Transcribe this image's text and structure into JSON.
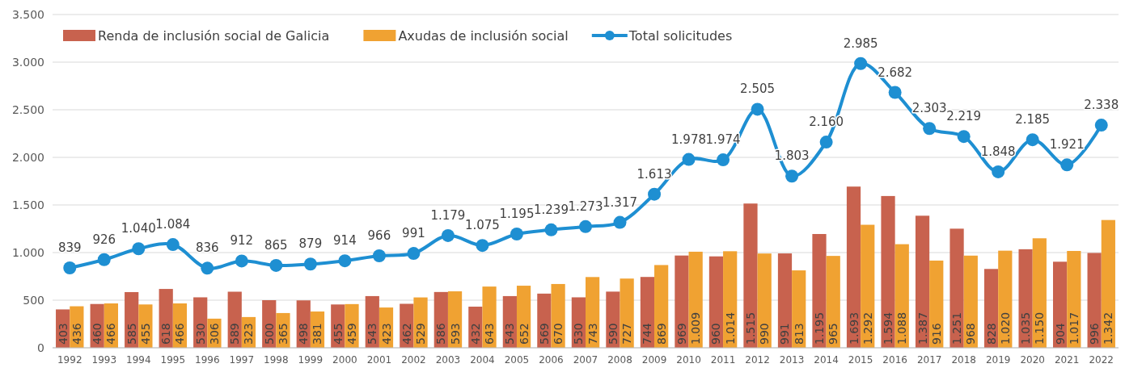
{
  "chart_data": {
    "type": "bar",
    "categories": [
      "1992",
      "1993",
      "1994",
      "1995",
      "1996",
      "1997",
      "1998",
      "1999",
      "2000",
      "2001",
      "2002",
      "2003",
      "2004",
      "2005",
      "2006",
      "2007",
      "2008",
      "2009",
      "2010",
      "2011",
      "2012",
      "2013",
      "2014",
      "2015",
      "2016",
      "2017",
      "2018",
      "2019",
      "2020",
      "2021",
      "2022"
    ],
    "series": [
      {
        "name": "Renda de inclusión social de Galicia",
        "color": "#c8624e",
        "values": [
          403,
          460,
          585,
          618,
          530,
          589,
          500,
          498,
          455,
          543,
          462,
          586,
          432,
          543,
          569,
          530,
          590,
          744,
          969,
          960,
          1515,
          991,
          1195,
          1693,
          1594,
          1387,
          1251,
          828,
          1035,
          904,
          996
        ],
        "value_labels": [
          "403",
          "460",
          "585",
          "618",
          "530",
          "589",
          "500",
          "498",
          "455",
          "543",
          "462",
          "586",
          "432",
          "543",
          "569",
          "530",
          "590",
          "744",
          "969",
          "960",
          "1.515",
          "991",
          "1.195",
          "1.693",
          "1.594",
          "1.387",
          "1.251",
          "828",
          "1.035",
          "904",
          "996"
        ]
      },
      {
        "name": "Axudas de inclusión social",
        "color": "#f0a232",
        "values": [
          436,
          466,
          455,
          466,
          306,
          323,
          365,
          381,
          459,
          423,
          529,
          593,
          643,
          652,
          670,
          743,
          727,
          869,
          1009,
          1014,
          990,
          813,
          965,
          1292,
          1088,
          916,
          968,
          1020,
          1150,
          1017,
          1342
        ],
        "value_labels": [
          "436",
          "466",
          "455",
          "466",
          "306",
          "323",
          "365",
          "381",
          "459",
          "423",
          "529",
          "593",
          "643",
          "652",
          "670",
          "743",
          "727",
          "869",
          "1.009",
          "1.014",
          "990",
          "813",
          "965",
          "1.292",
          "1.088",
          "916",
          "968",
          "1.020",
          "1.150",
          "1.017",
          "1.342"
        ]
      },
      {
        "name": "Total solicitudes",
        "type": "line",
        "color": "#1e8fd2",
        "marker": "circle",
        "values": [
          839,
          926,
          1040,
          1084,
          836,
          912,
          865,
          879,
          914,
          966,
          991,
          1179,
          1075,
          1195,
          1239,
          1273,
          1317,
          1613,
          1978,
          1974,
          2505,
          1803,
          2160,
          2985,
          2682,
          2303,
          2219,
          1848,
          2185,
          1921,
          2338
        ],
        "value_labels": [
          "839",
          "926",
          "1.040",
          "1.084",
          "836",
          "912",
          "865",
          "879",
          "914",
          "966",
          "991",
          "1.179",
          "1.075",
          "1.195",
          "1.239",
          "1.273",
          "1.317",
          "1.613",
          "1.978",
          "1.974",
          "2.505",
          "1.803",
          "2.160",
          "2.985",
          "2.682",
          "2.303",
          "2.219",
          "1.848",
          "2.185",
          "1.921",
          "2.338"
        ]
      }
    ],
    "ylim": [
      0,
      3500
    ],
    "yticks": [
      0,
      {
        "value": 500,
        "label": "500"
      },
      {
        "value": 1000,
        "label": "1.000"
      },
      {
        "value": 1500,
        "label": "1.500"
      },
      {
        "value": 2000,
        "label": "2.000"
      },
      {
        "value": 2500,
        "label": "2.500"
      },
      {
        "value": 3000,
        "label": "3.000"
      },
      {
        "value": 3500,
        "label": "3.500"
      }
    ],
    "grid": "y",
    "legend": "top left"
  }
}
